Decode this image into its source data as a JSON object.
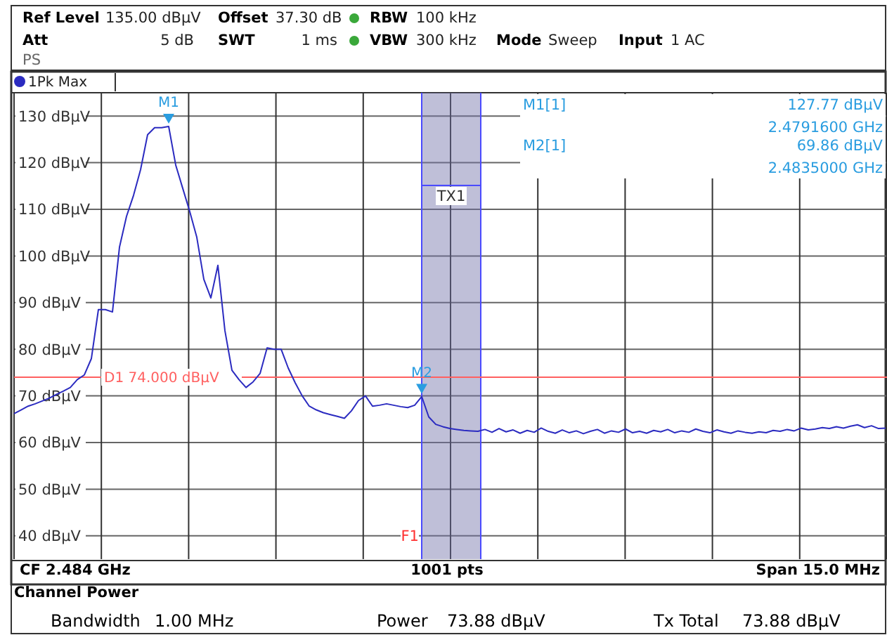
{
  "chart_data": {
    "type": "line",
    "legend": "top left",
    "grid": true,
    "tick_labels": "y",
    "categories": [
      null,
      null,
      null,
      null,
      null,
      null,
      null,
      null,
      null,
      null,
      null,
      null,
      null,
      null,
      null,
      null,
      null,
      null,
      null,
      null,
      null,
      null,
      null,
      null,
      null,
      null,
      null,
      null,
      null,
      null,
      null,
      null,
      null,
      null,
      null,
      null,
      null,
      null,
      null,
      null,
      null,
      null,
      null,
      null,
      null,
      null,
      null,
      null,
      null,
      null,
      null,
      null,
      null,
      null,
      null,
      null,
      null,
      null,
      null,
      null,
      null,
      null,
      null,
      null,
      null,
      null,
      null,
      null,
      null,
      null,
      null,
      null,
      null,
      null,
      null,
      null,
      null,
      null,
      null,
      null,
      null,
      null,
      null,
      null,
      null,
      null,
      null,
      null,
      null,
      null,
      null,
      null,
      null,
      null,
      null,
      null,
      null,
      null,
      null,
      null,
      null,
      null,
      null,
      null,
      null,
      null,
      null,
      null,
      null,
      null,
      null,
      null,
      null,
      null,
      null,
      null,
      null,
      null,
      null,
      null,
      null,
      null,
      null,
      null,
      null
    ],
    "ylim": [
      35,
      135
    ],
    "yticks": [
      {
        "value": 40,
        "label": "40 dBµV"
      },
      {
        "value": 50,
        "label": "50 dBµV"
      },
      {
        "value": 60,
        "label": "60 dBµV"
      },
      {
        "value": 70,
        "label": "70 dBµV"
      },
      {
        "value": 80,
        "label": "80 dBµV"
      },
      {
        "value": 90,
        "label": "90 dBµV"
      },
      {
        "value": 100,
        "label": "100 dBµV"
      },
      {
        "value": 110,
        "label": "110 dBµV"
      },
      {
        "value": 120,
        "label": "120 dBµV"
      },
      {
        "value": 130,
        "label": "130 dBµV"
      }
    ],
    "series": [
      {
        "name": "1Pk Max",
        "color": "#2b2bc0",
        "values": [
          66.2,
          67.0,
          67.8,
          68.3,
          68.9,
          69.5,
          70.3,
          71.0,
          71.8,
          73.5,
          74.5,
          78,
          88.5,
          88.5,
          88,
          101.9,
          108.5,
          113,
          118.5,
          126,
          127.5,
          127.5,
          127.77,
          119.5,
          114.5,
          109.5,
          104,
          95,
          91,
          98,
          84,
          75.5,
          73.5,
          71.8,
          73,
          74.8,
          80.3,
          80,
          80,
          76,
          72.8,
          70,
          67.8,
          67,
          66.4,
          66,
          65.6,
          65.2,
          66.8,
          69,
          70,
          67.8,
          68,
          68.3,
          68,
          67.7,
          67.5,
          68,
          69.86,
          65.5,
          63.9,
          63.4,
          63,
          62.8,
          62.6,
          62.5,
          62.4,
          62.8,
          62.2,
          63.0,
          62.3,
          62.7,
          62.0,
          62.6,
          62.2,
          63.1,
          62.4,
          62.0,
          62.7,
          62.1,
          62.5,
          61.9,
          62.4,
          62.8,
          62.0,
          62.5,
          62.2,
          62.9,
          62.1,
          62.4,
          62.0,
          62.6,
          62.3,
          62.8,
          62.1,
          62.5,
          62.2,
          62.9,
          62.4,
          62.1,
          62.7,
          62.3,
          62.0,
          62.5,
          62.2,
          62.0,
          62.3,
          62.1,
          62.6,
          62.4,
          62.8,
          62.5,
          63.1,
          62.7,
          62.9,
          63.2,
          63.0,
          63.4,
          63.1,
          63.5,
          63.8,
          63.2,
          63.6,
          63.0,
          63.1
        ]
      }
    ],
    "ref_lines": [
      {
        "axis": "y",
        "value": 74,
        "label": "D1  74.000 dBµV",
        "color": "#ff6060"
      }
    ],
    "annotations": [
      "Ref Level",
      "135.00 dBµV",
      "Offset",
      "37.30 dB",
      "RBW",
      "100 kHz",
      "Att",
      "5 dB",
      "SWT",
      "1 ms",
      "VBW",
      "300 kHz",
      "Mode",
      "Sweep",
      "Input",
      "1 AC",
      "PS",
      "M1[1]",
      "127.77 dBµV",
      "2.4791600 GHz",
      "M2[1]",
      "69.86 dBµV",
      "2.4835000 GHz",
      "CF 2.484 GHz",
      "1001 pts",
      "Span 15.0 MHz",
      "Channel Power",
      "Bandwidth",
      "1.00 MHz",
      "Power",
      "73.88 dBµV",
      "Tx Total",
      "73.88 dBµV",
      "TX1",
      "F1",
      {
        "text": "M1",
        "y": 127.77
      },
      {
        "text": "M2",
        "y": 69.86
      }
    ]
  }
}
